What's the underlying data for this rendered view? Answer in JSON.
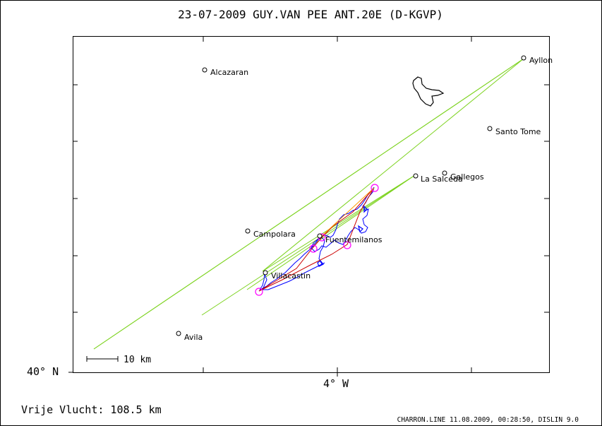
{
  "header": {
    "title": "23-07-2009    GUY.VAN PEE    ANT.20E (D-KGVP)"
  },
  "axes": {
    "lat_label": "40° N",
    "lon_label": "4° W"
  },
  "scale": {
    "label": "10 km"
  },
  "places": [
    {
      "id": "ayllon",
      "name": "Ayllon"
    },
    {
      "id": "alcazaran",
      "name": "Alcazaran"
    },
    {
      "id": "santo-tome",
      "name": "Santo Tome"
    },
    {
      "id": "gallegos",
      "name": "Gallegos"
    },
    {
      "id": "la-salceda",
      "name": "La Salceda"
    },
    {
      "id": "campolara",
      "name": "Campolara"
    },
    {
      "id": "fuentemilanos",
      "name": "Fuentemilanos"
    },
    {
      "id": "villacastin",
      "name": "Villacastin"
    },
    {
      "id": "avila",
      "name": "Avila"
    }
  ],
  "footer": {
    "distance_label": "Vrije Vlucht:  108.5 km",
    "credits": "CHARRON.LINE 11.08.2009, 00:28:50, DISLIN 9.0"
  },
  "colors": {
    "frame": "#000000",
    "task_lines": "#7ed321",
    "track_blue": "#0000ff",
    "track_red": "#cc0000",
    "turnpoints": "#ff00ff"
  }
}
